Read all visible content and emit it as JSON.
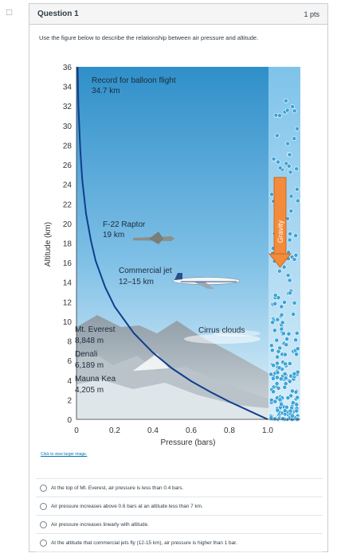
{
  "question": {
    "title": "Question 1",
    "points": "1 pts",
    "prompt": "Use the figure below to describe the relationship between air pressure and altitude.",
    "click_link": "Click to view larger image."
  },
  "figure": {
    "y_axis_label": "Altitude (km)",
    "x_axis_label": "Pressure (bars)",
    "y_ticks": [
      "0",
      "2",
      "4",
      "6",
      "8",
      "10",
      "12",
      "14",
      "16",
      "18",
      "20",
      "22",
      "24",
      "26",
      "28",
      "30",
      "32",
      "34",
      "36"
    ],
    "x_ticks": [
      "0",
      "0.2",
      "0.4",
      "0.6",
      "0.8",
      "1.0"
    ],
    "annotations": {
      "balloon_line1": "Record for balloon flight",
      "balloon_line2": "34.7 km",
      "raptor_line1": "F-22 Raptor",
      "raptor_line2": "19 km",
      "jet_line1": "Commercial jet",
      "jet_line2": "12–15 km",
      "everest_line1": "Mt. Everest",
      "everest_line2": "8,848 m",
      "denali_line1": "Denali",
      "denali_line2": "6,189 m",
      "maunakea_line1": "Mauna Kea",
      "maunakea_line2": "4,205 m",
      "cirrus": "Cirrus clouds",
      "gravity": "Gravity"
    },
    "colors": {
      "sky_top": "#2f8fc9",
      "sky_bottom": "#d6ecf7",
      "curve": "#0f3e8c",
      "gravity_arrow": "#f28b3c",
      "bubble": "#3aa3d8"
    }
  },
  "chart_data": {
    "type": "line",
    "x": [
      0.006,
      0.01,
      0.02,
      0.03,
      0.05,
      0.075,
      0.1,
      0.15,
      0.2,
      0.3,
      0.4,
      0.5,
      0.6,
      0.7,
      0.8,
      0.9,
      1.0
    ],
    "y": [
      36,
      32,
      27.5,
      24.5,
      21,
      18.3,
      16.2,
      13.5,
      11.5,
      8.8,
      6.8,
      5.2,
      3.9,
      2.8,
      1.8,
      0.9,
      0
    ],
    "xlabel": "Pressure (bars)",
    "ylabel": "Altitude (km)",
    "xlim": [
      0,
      1.0
    ],
    "ylim": [
      0,
      36
    ]
  },
  "answers": [
    "At the top of Mt. Everest, air pressure is less than 0.4 bars.",
    "Air pressure increases above 0.6 bars at an altitude less than 7 km.",
    "Air pressure increases linearly with altitude.",
    "At the altitude that commercial jets fly (12-15 km), air pressure is higher than 1 bar."
  ]
}
